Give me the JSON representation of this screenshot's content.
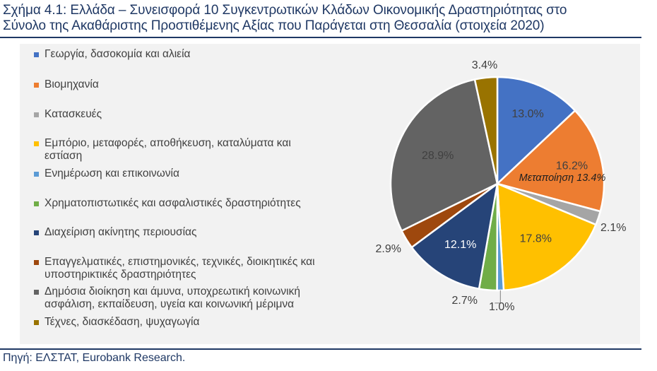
{
  "title": {
    "line1": "Σχήμα 4.1: Ελλάδα – Συνεισφορά 10 Συγκεντρωτικών Κλάδων Οικονομικής Δραστηριότητας στο",
    "line2": "Σύνολο της Ακαθάριστης Προστιθέμενης Αξίας που Παράγεται στη Θεσσαλία (στοιχεία 2020)"
  },
  "source": "Πηγή: ΕΛΣΤΑΤ, Eurobank Research.",
  "chart_data": {
    "type": "pie",
    "title": "Σχήμα 4.1: Ελλάδα – Συνεισφορά 10 Συγκεντρωτικών Κλάδων Οικονομικής Δραστηριότητας στο Σύνολο της Ακαθάριστης Προστιθέμενης Αξίας που Παράγεται στη Θεσσαλία (στοιχεία 2020)",
    "legend_position": "left",
    "start_angle_deg": 0,
    "direction": "clockwise",
    "slices": [
      {
        "label": "Γεωργία, δασοκομία και αλιεία",
        "value": 13.0,
        "value_label": "13.0%",
        "color": "#4472c4"
      },
      {
        "label": "Βιομηχανία",
        "value": 16.2,
        "value_label": "16.2%",
        "color": "#ed7d31"
      },
      {
        "label": "Κατασκευές",
        "value": 2.1,
        "value_label": "2.1%",
        "color": "#a5a5a5"
      },
      {
        "label": "Εμπόριο, μεταφορές, αποθήκευση, καταλύματα και\nεστίαση",
        "value": 17.8,
        "value_label": "17.8%",
        "color": "#ffc000"
      },
      {
        "label": "Ενημέρωση και επικοινωνία",
        "value": 1.0,
        "value_label": "1.0%",
        "color": "#5b9bd5"
      },
      {
        "label": "Χρηματοπιστωτικές και ασφαλιστικές δραστηριότητες",
        "value": 2.7,
        "value_label": "2.7%",
        "color": "#70ad47"
      },
      {
        "label": "Διαχείριση ακίνητης περιουσίας",
        "value": 12.1,
        "value_label": "12.1%",
        "color": "#264478"
      },
      {
        "label": "Επαγγελματικές, επιστημονικές, τεχνικές, διοικητικές και\nυποστηρικτικές δραστηριότητες",
        "value": 2.9,
        "value_label": "2.9%",
        "color": "#9e480e"
      },
      {
        "label": "Δημόσια διοίκηση και άμυνα, υποχρεωτική κοινωνική\nασφάλιση, εκπαίδευση, υγεία και κοινωνική μέριμνα",
        "value": 28.9,
        "value_label": "28.9%",
        "color": "#636363"
      },
      {
        "label": "Τέχνες, διασκέδαση, ψυχαγωγία",
        "value": 3.4,
        "value_label": "3.4%",
        "color": "#997300"
      }
    ],
    "annotations": [
      {
        "text": "Μεταποίηση 13.4%",
        "slice": "Βιομηχανία"
      }
    ]
  }
}
